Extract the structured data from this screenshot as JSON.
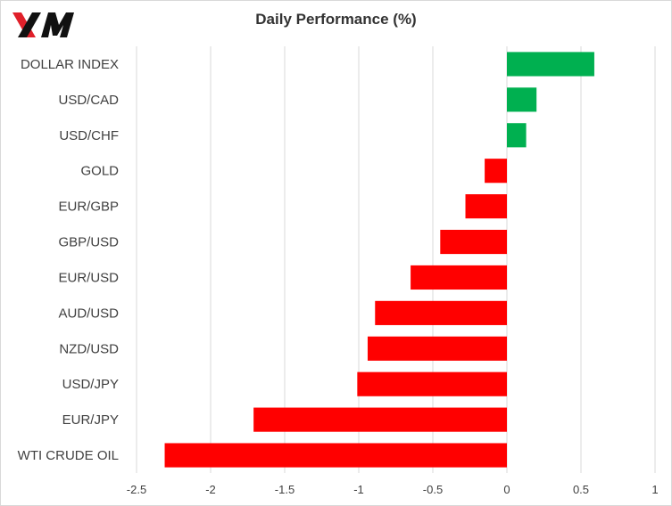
{
  "logo": {
    "text": "XM",
    "colors": {
      "red": "#e0202a",
      "black": "#111111"
    }
  },
  "colors": {
    "positive": "#00b050",
    "negative": "#ff0000",
    "grid": "#d9d9d9"
  },
  "chart_data": {
    "type": "bar",
    "orientation": "horizontal",
    "title": "Daily Performance  (%)",
    "categories": [
      "DOLLAR INDEX",
      "USD/CAD",
      "USD/CHF",
      "GOLD",
      "EUR/GBP",
      "GBP/USD",
      "EUR/USD",
      "AUD/USD",
      "NZD/USD",
      "USD/JPY",
      "EUR/JPY",
      "WTI CRUDE OIL"
    ],
    "values": [
      0.59,
      0.2,
      0.13,
      -0.15,
      -0.28,
      -0.45,
      -0.65,
      -0.89,
      -0.94,
      -1.01,
      -1.71,
      -2.31
    ],
    "xlim": [
      -2.5,
      1
    ],
    "xticks": [
      -2.5,
      -2,
      -1.5,
      -1,
      -0.5,
      0,
      0.5,
      1
    ],
    "tick_labels": [
      "-2.5",
      "-2",
      "-1.5",
      "-1",
      "-0.5",
      "0",
      "0.5",
      "1"
    ],
    "grid": true,
    "legend": "none"
  }
}
